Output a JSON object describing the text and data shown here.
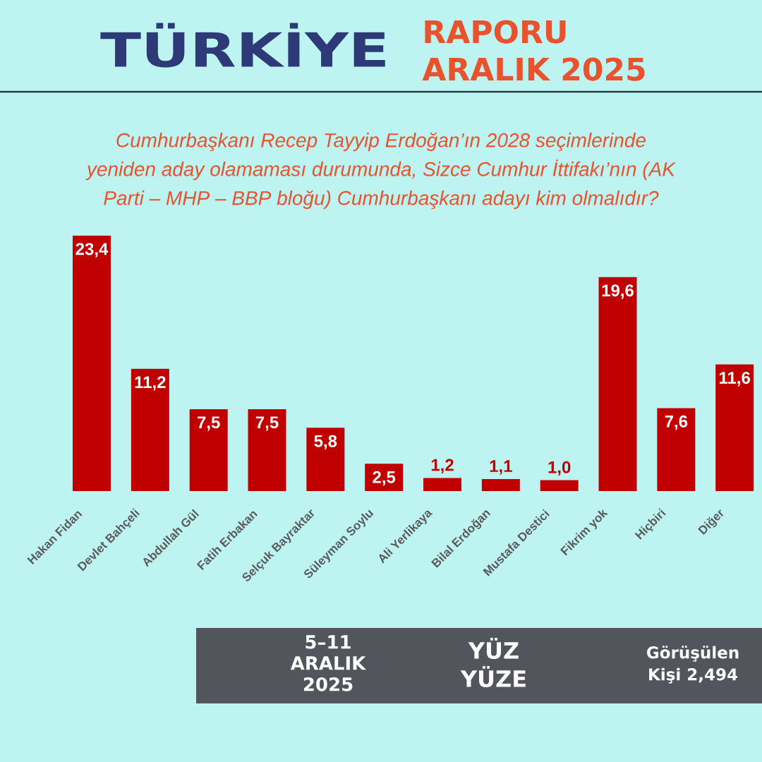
{
  "chart_data": {
    "type": "bar",
    "title": "Cumhurbaşkanı Recep Tayyip Erdoğan’ın 2028 seçimlerinde yeniden aday olamaması durumunda, Sizce Cumhur İttifakı’nın (AK Parti – MHP – BBP bloğu) Cumhurbaşkanı adayı kim olmalıdır?",
    "categories": [
      "Hakan Fidan",
      "Devlet Bahçeli",
      "Abdullah Gül",
      "Fatih Erbakan",
      "Selçuk Bayraktar",
      "Süleyman Soylu",
      "Ali Yerlikaya",
      "Bilal Erdoğan",
      "Mustafa Destici",
      "Fikrim yok",
      "Hiçbiri",
      "Diğer"
    ],
    "values": [
      23.4,
      11.2,
      7.5,
      7.5,
      5.8,
      2.5,
      1.2,
      1.1,
      1.0,
      19.6,
      7.6,
      11.6
    ],
    "value_labels": [
      "23,4",
      "11,2",
      "7,5",
      "7,5",
      "5,8",
      "2,5",
      "1,2",
      "1,1",
      "1,0",
      "19,6",
      "7,6",
      "11,6"
    ],
    "color": "#c00000",
    "annotations": [
      "TÜRKİYE",
      "RAPORU ARALIK 2025",
      "5–11 ARALIK 2025",
      "YÜZ YÜZE",
      "Görüşülen Kişi 2,494"
    ]
  }
}
